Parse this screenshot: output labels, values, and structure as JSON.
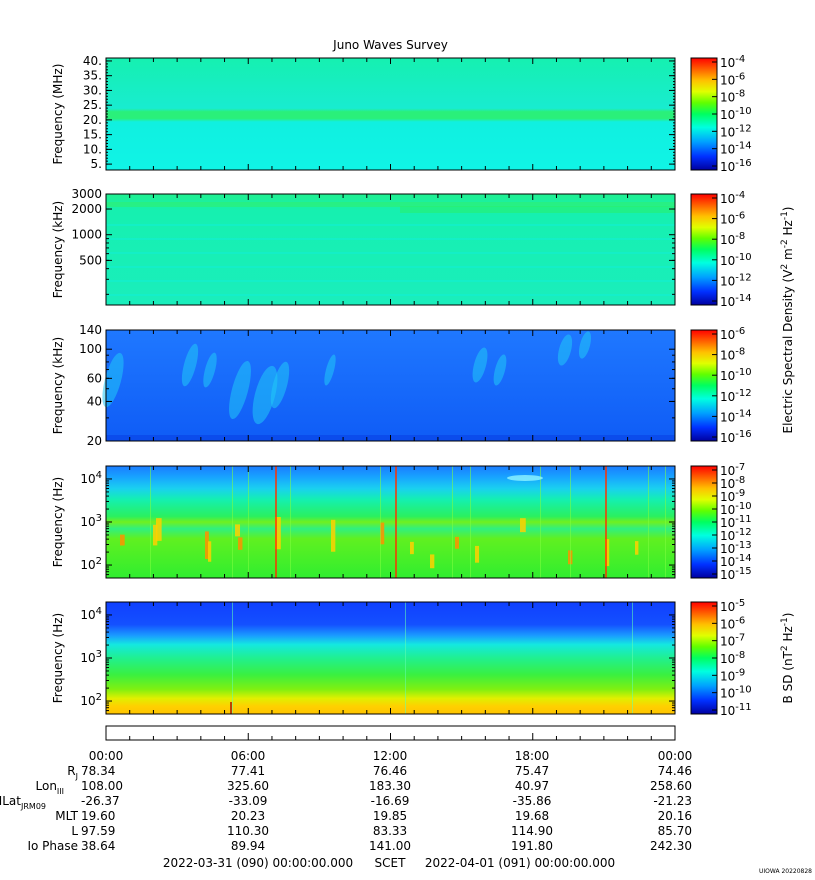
{
  "chart_data": {
    "type": "heatmap",
    "title": "Juno Waves Survey",
    "panels": [
      {
        "id": "panel1",
        "ylabel": "Frequency (MHz)",
        "scale": "linear",
        "ylim": [
          3,
          41
        ],
        "yticks": [
          {
            "v": 40,
            "t": "40."
          },
          {
            "v": 35,
            "t": "35."
          },
          {
            "v": 30,
            "t": "30."
          },
          {
            "v": 25,
            "t": "25."
          },
          {
            "v": 20,
            "t": "20."
          },
          {
            "v": 15,
            "t": "15."
          },
          {
            "v": 10,
            "t": "10."
          },
          {
            "v": 5,
            "t": "5."
          }
        ],
        "colorbar_ticks": [
          "10-4",
          "10-6",
          "10-8",
          "10-10",
          "10-12",
          "10-14",
          "10-16"
        ],
        "colorbar_label": ""
      },
      {
        "id": "panel2",
        "ylabel": "Frequency (kHz)",
        "scale": "log",
        "ylim": [
          150,
          3000
        ],
        "yticks": [
          {
            "v": 3000,
            "t": "3000"
          },
          {
            "v": 2000,
            "t": "2000"
          },
          {
            "v": 1000,
            "t": "1000"
          },
          {
            "v": 500,
            "t": "500"
          }
        ],
        "colorbar_ticks": [
          "10-4",
          "10-6",
          "10-8",
          "10-10",
          "10-12",
          "10-14"
        ],
        "colorbar_label": ""
      },
      {
        "id": "panel3",
        "ylabel": "Frequency (kHz)",
        "scale": "log",
        "ylim": [
          20,
          140
        ],
        "yticks": [
          {
            "v": 140,
            "t": "140"
          },
          {
            "v": 100,
            "t": "100"
          },
          {
            "v": 60,
            "t": "60"
          },
          {
            "v": 40,
            "t": "40"
          },
          {
            "v": 20,
            "t": "20"
          }
        ],
        "colorbar_ticks": [
          "10-6",
          "10-8",
          "10-10",
          "10-12",
          "10-14",
          "10-16"
        ],
        "colorbar_label": "Electric Spectral Density (V2 m-2 Hz-1)"
      },
      {
        "id": "panel4",
        "ylabel": "Frequency (Hz)",
        "scale": "log",
        "ylim": [
          50,
          20000
        ],
        "yticks": [
          {
            "v": 10000,
            "t": "10",
            "e": "4"
          },
          {
            "v": 1000,
            "t": "10",
            "e": "3"
          },
          {
            "v": 100,
            "t": "10",
            "e": "2"
          }
        ],
        "colorbar_ticks": [
          "10-7",
          "10-8",
          "10-9",
          "10-10",
          "10-11",
          "10-12",
          "10-13",
          "10-14",
          "10-15"
        ],
        "colorbar_label": ""
      },
      {
        "id": "panel5",
        "ylabel": "Frequency (Hz)",
        "scale": "log",
        "ylim": [
          50,
          20000
        ],
        "yticks": [
          {
            "v": 10000,
            "t": "10",
            "e": "4"
          },
          {
            "v": 1000,
            "t": "10",
            "e": "3"
          },
          {
            "v": 100,
            "t": "10",
            "e": "2"
          }
        ],
        "colorbar_ticks": [
          "10-5",
          "10-6",
          "10-7",
          "10-8",
          "10-9",
          "10-10",
          "10-11"
        ],
        "colorbar_label": "B SD (nT2 Hz-1)"
      }
    ],
    "x_tick_labels": [
      "00:00",
      "06:00",
      "12:00",
      "18:00",
      "00:00"
    ],
    "ephemeris": [
      {
        "label": "Rj",
        "values": [
          "78.34",
          "77.41",
          "76.46",
          "75.47",
          "74.46"
        ]
      },
      {
        "label": "LonIII",
        "values": [
          "108.00",
          "325.60",
          "183.30",
          "40.97",
          "258.60"
        ]
      },
      {
        "label": "MLatJRM09",
        "values": [
          "-26.37",
          "-33.09",
          "-16.69",
          "-35.86",
          "-21.23"
        ]
      },
      {
        "label": "MLT",
        "values": [
          "19.60",
          "20.23",
          "19.85",
          "19.68",
          "20.16"
        ]
      },
      {
        "label": "L",
        "values": [
          "97.59",
          "110.30",
          "83.33",
          "114.90",
          "85.70"
        ]
      },
      {
        "label": "Io Phase",
        "values": [
          "38.64",
          "89.94",
          "141.00",
          "191.80",
          "242.30"
        ]
      }
    ],
    "time_range": {
      "start": "2022-03-31 (090) 00:00:00.000",
      "mid": "SCET",
      "end": "2022-04-01 (091) 00:00:00.000"
    },
    "stamp": "UIOWA 20220828",
    "colormap": [
      "#0000a0",
      "#0030ff",
      "#00a0ff",
      "#00ffe0",
      "#00ff60",
      "#60ff00",
      "#e0ff00",
      "#ffc000",
      "#ff6000",
      "#ff0000"
    ]
  }
}
